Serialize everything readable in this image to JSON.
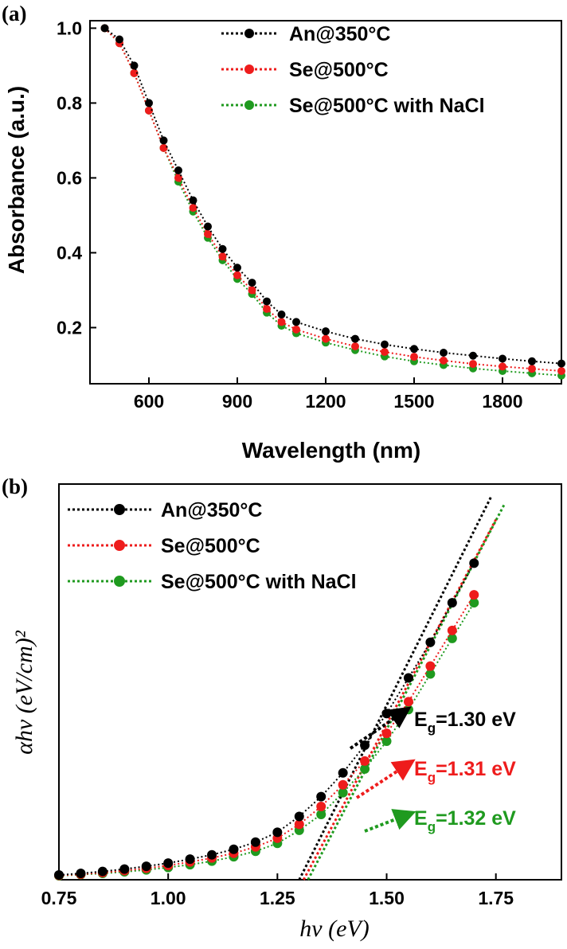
{
  "colors": {
    "black": "#000000",
    "red": "#ee1c1c",
    "green": "#1f9a1f"
  },
  "chart_data": [
    {
      "panel_label": "(a)",
      "type": "scatter",
      "xlabel": "Wavelength (nm)",
      "ylabel": "Absorbance (a.u.)",
      "xlim": [
        400,
        2000
      ],
      "ylim": [
        0.05,
        1.02
      ],
      "xticks": [
        "600",
        "900",
        "1200",
        "1500",
        "1800"
      ],
      "yticks": [
        "1.0",
        "0.8",
        "0.6",
        "0.4",
        "0.2"
      ],
      "grid": false,
      "legend_position": "top-right",
      "series": [
        {
          "name": "An@350°C",
          "color": "#000000",
          "x": [
            450,
            500,
            550,
            600,
            650,
            700,
            750,
            800,
            850,
            900,
            950,
            1000,
            1050,
            1100,
            1200,
            1300,
            1400,
            1500,
            1600,
            1700,
            1800,
            1900,
            2000
          ],
          "y": [
            1.0,
            0.97,
            0.9,
            0.8,
            0.7,
            0.62,
            0.54,
            0.47,
            0.41,
            0.36,
            0.32,
            0.27,
            0.235,
            0.215,
            0.19,
            0.17,
            0.155,
            0.143,
            0.133,
            0.125,
            0.117,
            0.11,
            0.104
          ]
        },
        {
          "name": "Se@500°C",
          "color": "#ee1c1c",
          "x": [
            450,
            500,
            550,
            600,
            650,
            700,
            750,
            800,
            850,
            900,
            950,
            1000,
            1050,
            1100,
            1200,
            1300,
            1400,
            1500,
            1600,
            1700,
            1800,
            1900,
            2000
          ],
          "y": [
            1.0,
            0.96,
            0.88,
            0.78,
            0.68,
            0.6,
            0.52,
            0.45,
            0.39,
            0.34,
            0.3,
            0.25,
            0.215,
            0.195,
            0.17,
            0.15,
            0.135,
            0.122,
            0.112,
            0.103,
            0.096,
            0.09,
            0.084
          ]
        },
        {
          "name": "Se@500°C with NaCl",
          "color": "#1f9a1f",
          "x": [
            450,
            500,
            550,
            600,
            650,
            700,
            750,
            800,
            850,
            900,
            950,
            1000,
            1050,
            1100,
            1200,
            1300,
            1400,
            1500,
            1600,
            1700,
            1800,
            1900,
            2000
          ],
          "y": [
            1.0,
            0.96,
            0.88,
            0.78,
            0.68,
            0.59,
            0.51,
            0.44,
            0.38,
            0.33,
            0.29,
            0.24,
            0.205,
            0.185,
            0.16,
            0.14,
            0.123,
            0.11,
            0.1,
            0.091,
            0.084,
            0.078,
            0.072
          ]
        }
      ]
    },
    {
      "panel_label": "(b)",
      "type": "scatter",
      "xlabel": "hν (eV)",
      "ylabel": "αhν (eV/cm)²",
      "xlim": [
        0.75,
        1.9
      ],
      "ylim": [
        0,
        1.0
      ],
      "xticks": [
        "0.75",
        "1.00",
        "1.25",
        "1.50",
        "1.75"
      ],
      "yticks": [],
      "grid": false,
      "legend_position": "top-left",
      "series": [
        {
          "name": "An@350°C",
          "color": "#000000",
          "x": [
            0.75,
            0.8,
            0.85,
            0.9,
            0.95,
            1.0,
            1.05,
            1.1,
            1.15,
            1.2,
            1.25,
            1.3,
            1.35,
            1.4,
            1.45,
            1.5,
            1.55,
            1.6,
            1.65,
            1.7
          ],
          "y": [
            0.012,
            0.016,
            0.021,
            0.027,
            0.034,
            0.042,
            0.052,
            0.063,
            0.077,
            0.095,
            0.12,
            0.16,
            0.21,
            0.27,
            0.34,
            0.42,
            0.51,
            0.6,
            0.7,
            0.8
          ]
        },
        {
          "name": "Se@500°C",
          "color": "#ee1c1c",
          "x": [
            0.75,
            0.8,
            0.85,
            0.9,
            0.95,
            1.0,
            1.05,
            1.1,
            1.15,
            1.2,
            1.25,
            1.3,
            1.35,
            1.4,
            1.45,
            1.5,
            1.55,
            1.6,
            1.65,
            1.7
          ],
          "y": [
            0.011,
            0.014,
            0.018,
            0.023,
            0.029,
            0.036,
            0.045,
            0.055,
            0.067,
            0.083,
            0.105,
            0.14,
            0.185,
            0.24,
            0.3,
            0.37,
            0.45,
            0.54,
            0.63,
            0.72
          ]
        },
        {
          "name": "Se@500°C with NaCl",
          "color": "#1f9a1f",
          "x": [
            0.75,
            0.8,
            0.85,
            0.9,
            0.95,
            1.0,
            1.05,
            1.1,
            1.15,
            1.2,
            1.25,
            1.3,
            1.35,
            1.4,
            1.45,
            1.5,
            1.55,
            1.6,
            1.65,
            1.7
          ],
          "y": [
            0.01,
            0.013,
            0.016,
            0.02,
            0.025,
            0.031,
            0.038,
            0.047,
            0.058,
            0.072,
            0.092,
            0.125,
            0.165,
            0.22,
            0.28,
            0.35,
            0.43,
            0.52,
            0.61,
            0.7
          ]
        }
      ],
      "fit_lines": [
        {
          "color": "#000000",
          "x0": 1.3,
          "x1": 1.74,
          "y1": 0.97
        },
        {
          "color": "#ee1c1c",
          "x0": 1.31,
          "x1": 1.75,
          "y1": 0.91
        },
        {
          "color": "#1f9a1f",
          "x0": 1.32,
          "x1": 1.77,
          "y1": 0.95
        }
      ],
      "annotations": [
        {
          "label": "E",
          "sub": "g",
          "value": "=1.30 eV",
          "color": "#000000"
        },
        {
          "label": "E",
          "sub": "g",
          "value": "=1.31 eV",
          "color": "#ee1c1c"
        },
        {
          "label": "E",
          "sub": "g",
          "value": "=1.32 eV",
          "color": "#1f9a1f"
        }
      ]
    }
  ]
}
